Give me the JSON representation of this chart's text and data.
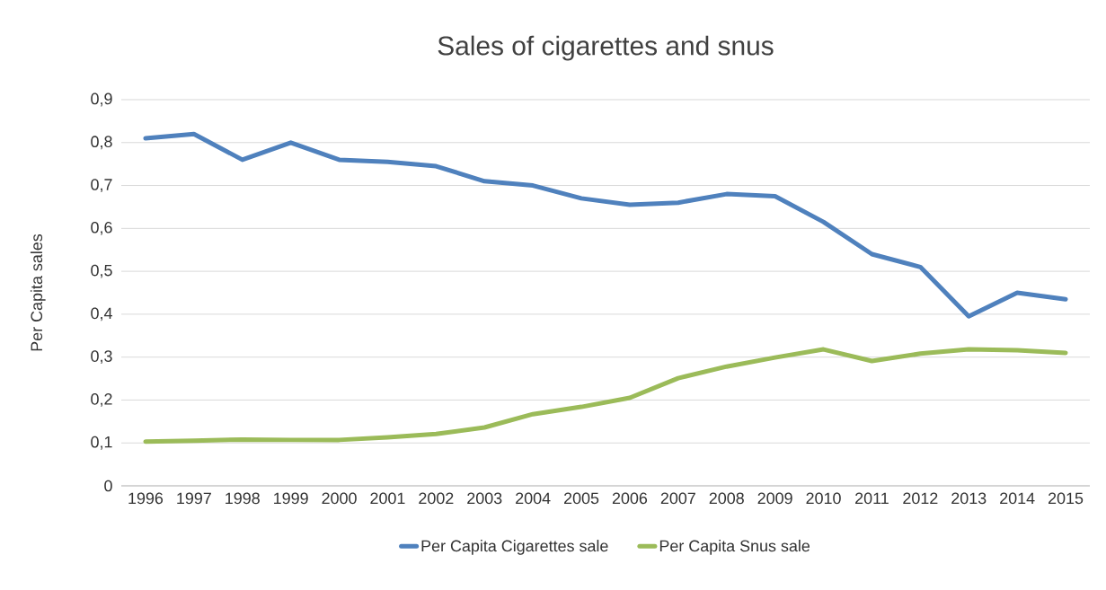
{
  "chart_data": {
    "type": "line",
    "title": "Sales of cigarettes and snus",
    "ylabel": "Per Capita sales",
    "categories": [
      "1996",
      "1997",
      "1998",
      "1999",
      "2000",
      "2001",
      "2002",
      "2003",
      "2004",
      "2005",
      "2006",
      "2007",
      "2008",
      "2009",
      "2010",
      "2011",
      "2012",
      "2013",
      "2014",
      "2015"
    ],
    "series": [
      {
        "name": "Per Capita Cigarettes sale",
        "color": "#4f81bd",
        "values": [
          0.81,
          0.82,
          0.76,
          0.8,
          0.76,
          0.755,
          0.745,
          0.71,
          0.7,
          0.67,
          0.655,
          0.66,
          0.68,
          0.675,
          0.615,
          0.54,
          0.51,
          0.395,
          0.45,
          0.435
        ]
      },
      {
        "name": "Per Capita Snus sale",
        "color": "#9bbb59",
        "values": [
          0.103,
          0.105,
          0.108,
          0.107,
          0.107,
          0.113,
          0.121,
          0.136,
          0.167,
          0.184,
          0.205,
          0.251,
          0.278,
          0.299,
          0.318,
          0.291,
          0.308,
          0.318,
          0.316,
          0.31
        ]
      }
    ],
    "ylim": [
      0,
      0.9
    ],
    "yticks": [
      0,
      {
        "value": 0.1,
        "label": "0,1"
      },
      {
        "value": 0.2,
        "label": "0,2"
      },
      {
        "value": 0.3,
        "label": "0,3"
      },
      {
        "value": 0.4,
        "label": "0,4"
      },
      {
        "value": 0.5,
        "label": "0,5"
      },
      {
        "value": 0.6,
        "label": "0,6"
      },
      {
        "value": 0.7,
        "label": "0,7"
      },
      {
        "value": 0.8,
        "label": "0,8"
      },
      {
        "value": 0.9,
        "label": "0,9"
      }
    ],
    "grid": "y",
    "legend": "bottom",
    "marker": "none",
    "line_style": "solid"
  }
}
